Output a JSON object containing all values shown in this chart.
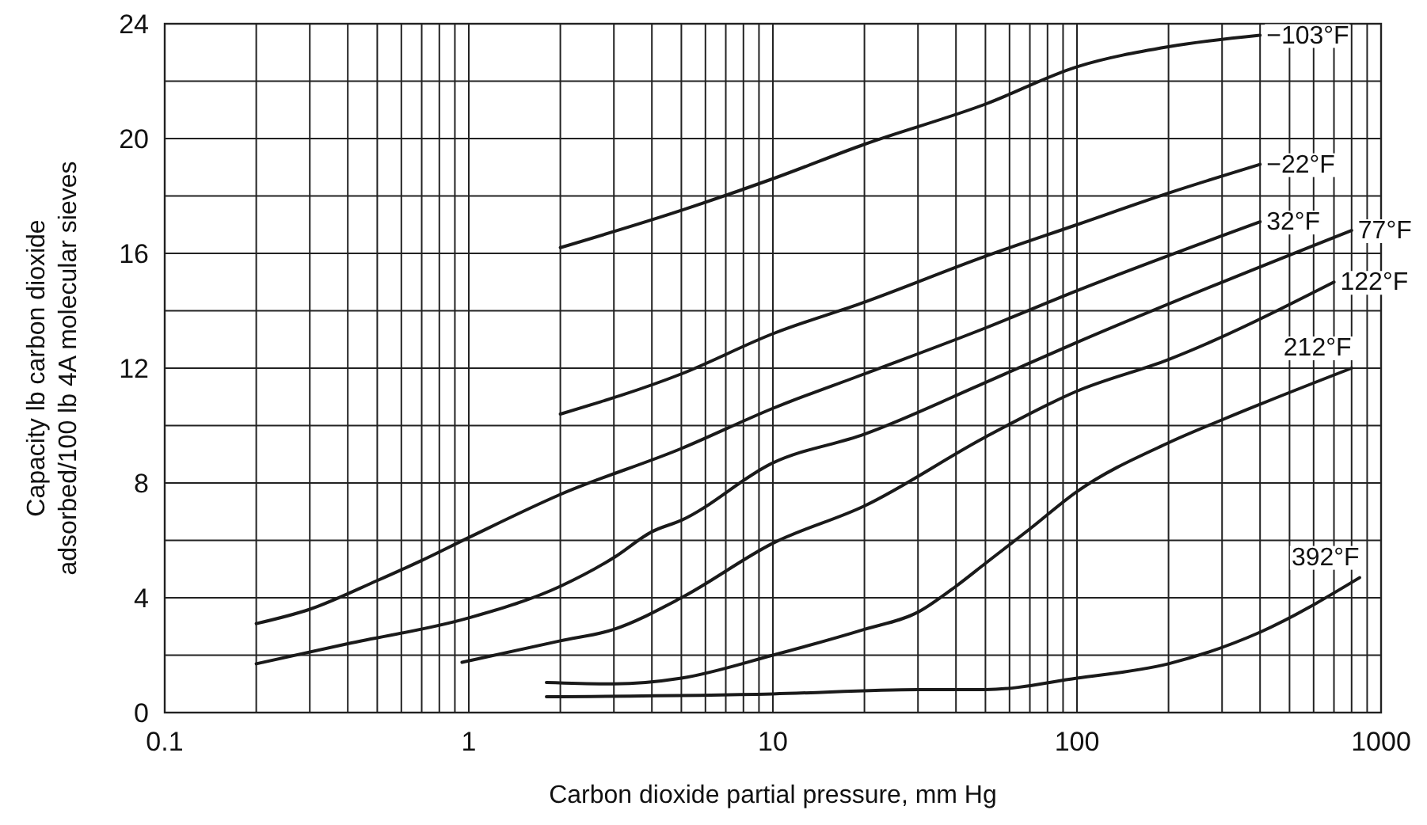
{
  "chart_data": {
    "type": "line",
    "xlabel": "Carbon dioxide partial pressure, mm Hg",
    "ylabel": "Capacity lb carbon dioxide\nadsorbed/100 lb 4A molecular sieves",
    "log": "x",
    "grid": true,
    "marker": "none",
    "line_style": "solid",
    "xlim": [
      0.1,
      1000
    ],
    "ylim": [
      0,
      24
    ],
    "xticks": [
      0.1,
      {
        "value": 0.2,
        "label": null
      },
      {
        "value": 0.3,
        "label": null
      },
      {
        "value": 0.4,
        "label": null
      },
      {
        "value": 0.5,
        "label": null
      },
      {
        "value": 0.6,
        "label": null
      },
      {
        "value": 0.7,
        "label": null
      },
      {
        "value": 0.8,
        "label": null
      },
      {
        "value": 0.9,
        "label": null
      },
      1,
      {
        "value": 2,
        "label": null
      },
      {
        "value": 3,
        "label": null
      },
      {
        "value": 4,
        "label": null
      },
      {
        "value": 5,
        "label": null
      },
      {
        "value": 6,
        "label": null
      },
      {
        "value": 7,
        "label": null
      },
      {
        "value": 8,
        "label": null
      },
      {
        "value": 9,
        "label": null
      },
      10,
      {
        "value": 20,
        "label": null
      },
      {
        "value": 30,
        "label": null
      },
      {
        "value": 40,
        "label": null
      },
      {
        "value": 50,
        "label": null
      },
      {
        "value": 60,
        "label": null
      },
      {
        "value": 70,
        "label": null
      },
      {
        "value": 80,
        "label": null
      },
      {
        "value": 90,
        "label": null
      },
      100,
      {
        "value": 200,
        "label": null
      },
      {
        "value": 300,
        "label": null
      },
      {
        "value": 400,
        "label": null
      },
      {
        "value": 500,
        "label": null
      },
      {
        "value": 600,
        "label": null
      },
      {
        "value": 700,
        "label": null
      },
      {
        "value": 800,
        "label": null
      },
      {
        "value": 900,
        "label": null
      },
      1000
    ],
    "yticks": [
      0,
      {
        "value": 2,
        "label": null
      },
      4,
      {
        "value": 6,
        "label": null
      },
      8,
      {
        "value": 10,
        "label": null
      },
      12,
      {
        "value": 14,
        "label": null
      },
      16,
      {
        "value": 18,
        "label": null
      },
      20,
      {
        "value": 22,
        "label": null
      },
      24
    ],
    "series": [
      {
        "name": "−103°F",
        "color": "#1a1a1a",
        "x": [
          2,
          5,
          10,
          20,
          50,
          100,
          200,
          400
        ],
        "values": [
          16.2,
          17.5,
          18.6,
          19.8,
          21.2,
          22.5,
          23.2,
          23.6
        ]
      },
      {
        "name": "−22°F",
        "color": "#1a1a1a",
        "x": [
          2,
          5,
          10,
          20,
          50,
          100,
          200,
          400
        ],
        "values": [
          10.4,
          11.8,
          13.2,
          14.3,
          15.9,
          17.0,
          18.1,
          19.1
        ]
      },
      {
        "name": "32°F",
        "color": "#1a1a1a",
        "x": [
          0.2,
          0.3,
          0.5,
          0.7,
          1,
          2,
          5,
          10,
          20,
          50,
          100,
          400
        ],
        "values": [
          3.1,
          3.6,
          4.6,
          5.3,
          6.1,
          7.6,
          9.2,
          10.6,
          11.8,
          13.4,
          14.7,
          17.1
        ]
      },
      {
        "name": "77°F",
        "color": "#1a1a1a",
        "x": [
          0.2,
          0.4,
          1,
          2,
          3,
          4,
          5,
          10,
          20,
          50,
          100,
          800
        ],
        "values": [
          1.7,
          2.4,
          3.3,
          4.4,
          5.4,
          6.3,
          6.7,
          8.7,
          9.7,
          11.5,
          12.9,
          16.8
        ]
      },
      {
        "name": "122°F",
        "color": "#1a1a1a",
        "x": [
          0.95,
          2,
          3,
          5,
          10,
          20,
          50,
          100,
          200,
          700
        ],
        "values": [
          1.75,
          2.5,
          2.9,
          4.0,
          5.9,
          7.2,
          9.6,
          11.2,
          12.3,
          15.0
        ]
      },
      {
        "name": "212°F",
        "color": "#1a1a1a",
        "x": [
          1.8,
          3,
          5,
          10,
          20,
          30,
          40,
          50,
          70,
          100,
          200,
          300,
          800
        ],
        "values": [
          1.05,
          1.0,
          1.2,
          2.0,
          2.9,
          3.5,
          4.4,
          5.2,
          6.4,
          7.7,
          9.4,
          10.2,
          12.0
        ]
      },
      {
        "name": "392°F",
        "color": "#1a1a1a",
        "x": [
          1.8,
          10,
          30,
          50,
          100,
          200,
          400,
          850
        ],
        "values": [
          0.55,
          0.65,
          0.8,
          0.8,
          1.2,
          1.7,
          2.8,
          4.7
        ]
      }
    ]
  }
}
